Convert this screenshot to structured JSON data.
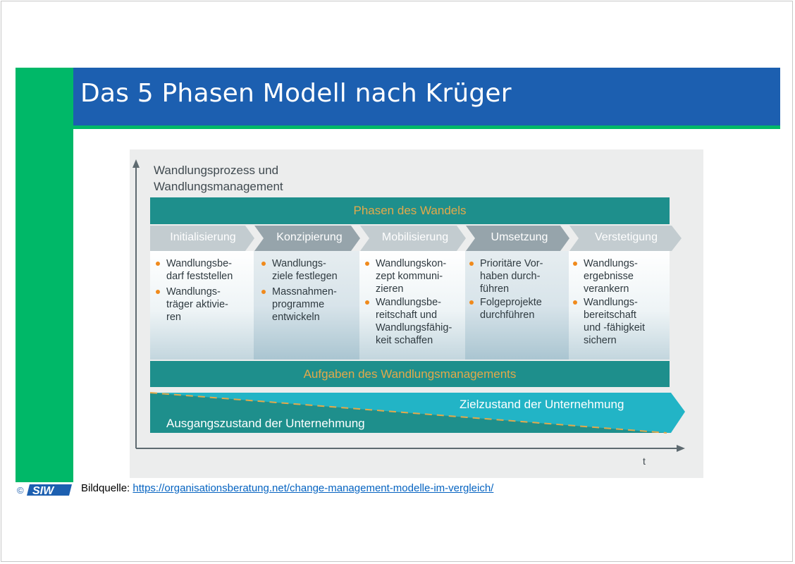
{
  "slide": {
    "title": "Das 5 Phasen Modell nach Krüger"
  },
  "diagram": {
    "y_axis_label": [
      "Wandlungsprozess und",
      "Wandlungsmanagement"
    ],
    "x_axis_label": "t",
    "phases_header": "Phasen des Wandels",
    "tasks_footer": "Aufgaben des Wandlungsmanagements",
    "phases": [
      {
        "name": "Initialisierung",
        "tasks": [
          [
            "Wandlungsbe-",
            "darf feststellen"
          ],
          [
            "Wandlungs-",
            "träger aktivie-",
            "ren"
          ]
        ]
      },
      {
        "name": "Konzipierung",
        "tasks": [
          [
            "Wandlungs-",
            "ziele festlegen"
          ],
          [
            "Massnahmen-",
            "programme",
            "entwickeln"
          ]
        ]
      },
      {
        "name": "Mobilisierung",
        "tasks": [
          [
            "Wandlungskon-",
            "zept kommuni-",
            "zieren"
          ],
          [
            "Wandlungsbe-",
            "reitschaft und",
            "Wandlungsfähig-",
            "keit schaffen"
          ]
        ]
      },
      {
        "name": "Umsetzung",
        "tasks": [
          [
            "Prioritäre Vor-",
            "haben durch-",
            "führen"
          ],
          [
            "Folgeprojekte",
            "durchführen"
          ]
        ]
      },
      {
        "name": "Verstetigung",
        "tasks": [
          [
            "Wandlungs-",
            "ergebnisse",
            "verankern"
          ],
          [
            "Wandlungs-",
            "bereitschaft",
            "und -fähigkeit",
            "sichern"
          ]
        ]
      }
    ],
    "target_state": "Zielzustand der Unternehmung",
    "initial_state": "Ausgangszustand der Unternehmung",
    "colors": {
      "teal": "#1e8f8c",
      "cyan": "#22b4c6",
      "orange_text": "#e3a94a",
      "bullet": "#f08a1c",
      "chevron_light": "#c3ccd0",
      "chevron_dark": "#96a4ab"
    }
  },
  "footer": {
    "copyright": "©",
    "logo_text": "SIW",
    "source_label": "Bildquelle: ",
    "source_url": "https://organisationsberatung.net/change-management-modelle-im-vergleich/"
  }
}
